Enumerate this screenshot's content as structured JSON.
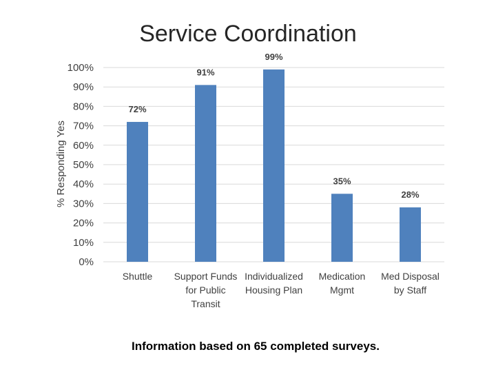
{
  "chart_data": {
    "type": "bar",
    "title": "Service Coordination",
    "ylabel": "% Responding Yes",
    "xlabel": "",
    "categories": [
      [
        "Shuttle"
      ],
      [
        "Support Funds",
        "for Public",
        "Transit"
      ],
      [
        "Individualized",
        "Housing Plan"
      ],
      [
        "Medication",
        "Mgmt"
      ],
      [
        "Med Disposal",
        "by Staff"
      ]
    ],
    "values": [
      72,
      91,
      99,
      35,
      28
    ],
    "data_labels": [
      "72%",
      "91%",
      "99%",
      "35%",
      "28%"
    ],
    "ylim": [
      0,
      100
    ],
    "yticks": [
      "0%",
      "10%",
      "20%",
      "30%",
      "40%",
      "50%",
      "60%",
      "70%",
      "80%",
      "90%",
      "100%"
    ],
    "grid": true,
    "bar_color": "#4F81BD",
    "grid_color": "#D9D9D9"
  },
  "footnote": "Information based on 65 completed surveys."
}
